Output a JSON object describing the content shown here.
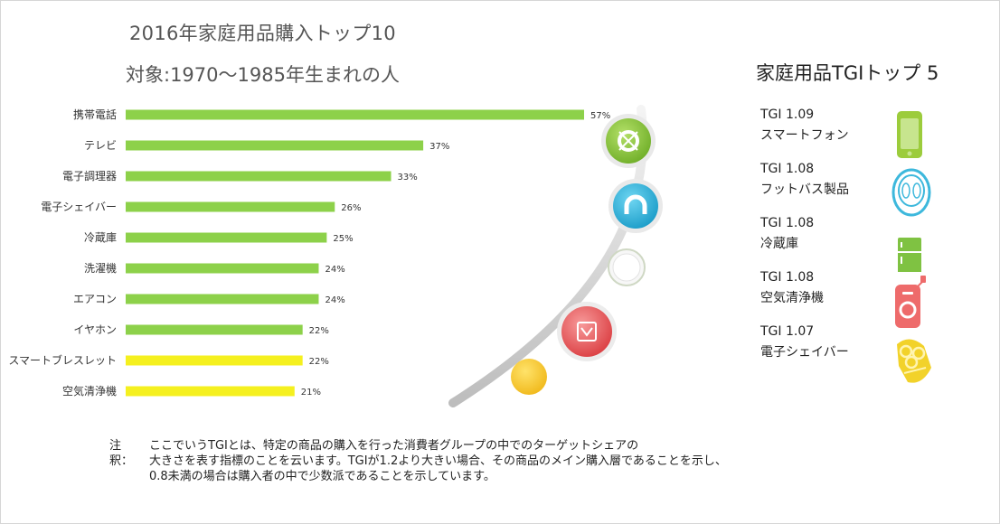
{
  "chart_data": {
    "type": "bar",
    "orientation": "horizontal",
    "title": "2016年家庭用品購入トップ10",
    "subtitle": "対象:1970～1985年生まれの人",
    "categories": [
      "携帯電話",
      "テレビ",
      "電子調理器",
      "電子シェイバー",
      "冷蔵庫",
      "洗濯機",
      "エアコン",
      "イヤホン",
      "スマートブレスレット",
      "空気清浄機"
    ],
    "values": [
      57,
      37,
      33,
      26,
      25,
      24,
      24,
      22,
      22,
      21
    ],
    "value_labels": [
      "57%",
      "37%",
      "33%",
      "26%",
      "25%",
      "24%",
      "24%",
      "22%",
      "22%",
      "21%"
    ],
    "bar_colors": [
      "#8dd14a",
      "#8dd14a",
      "#8dd14a",
      "#8dd14a",
      "#8dd14a",
      "#8dd14a",
      "#8dd14a",
      "#8dd14a",
      "#f5f01f",
      "#f5f01f"
    ],
    "xlim": [
      0,
      57
    ]
  },
  "tgi": {
    "title": "家庭用品TGIトップ 5",
    "items": [
      {
        "value": "TGI 1.09",
        "name": "スマートフォン",
        "icon": "smartphone-icon",
        "color": "#9ccc3c"
      },
      {
        "value": "TGI 1.08",
        "name": "フットバス製品",
        "icon": "footbath-icon",
        "color": "#3db8dc"
      },
      {
        "value": "TGI 1.08",
        "name": "冷蔵庫",
        "icon": "refrigerator-icon",
        "color": "#7fc242"
      },
      {
        "value": "TGI 1.08",
        "name": "空気清浄機",
        "icon": "air-purifier-icon",
        "color": "#ee6b6b"
      },
      {
        "value": "TGI 1.07",
        "name": "電子シェイバー",
        "icon": "shaver-icon",
        "color": "#f2d22a"
      }
    ]
  },
  "note": {
    "prefix": "注釈：",
    "lines": [
      "ここでいうTGIとは、特定の商品の購入を行った消費者グループの中でのターゲットシェアの",
      "大きさを表す指標のことを云います。TGIが1.2より大きい場合、その商品のメイン購入層であることを示し、",
      "0.8未満の場合は購入者の中で少数派であることを示しています。"
    ]
  },
  "decor_icons": [
    "lifebuoy-icon",
    "magnet-icon",
    "ring-icon",
    "shopping-bag-icon",
    "circle-icon"
  ]
}
